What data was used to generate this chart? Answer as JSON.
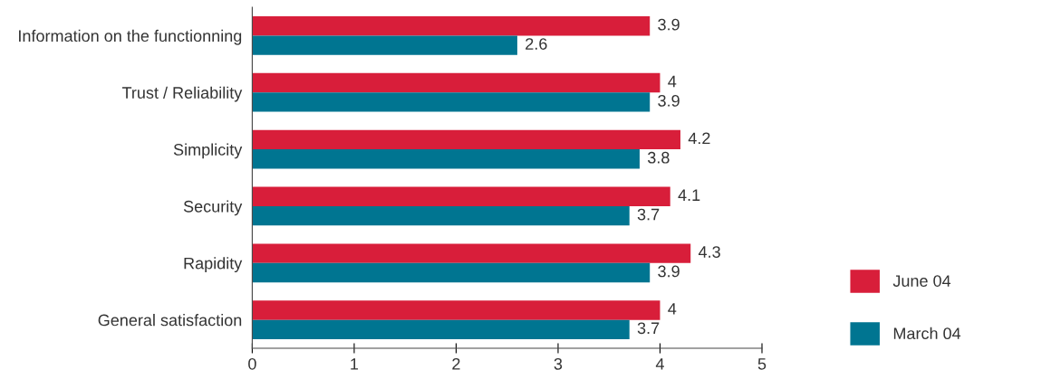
{
  "chart_data": {
    "type": "bar",
    "orientation": "horizontal",
    "categories": [
      "Information on the functionning",
      "Trust / Reliability",
      "Simplicity",
      "Security",
      "Rapidity",
      "General satisfaction"
    ],
    "series": [
      {
        "name": "June 04",
        "color": "#d81e3a",
        "values": [
          3.9,
          4,
          4.2,
          4.1,
          4.3,
          4
        ]
      },
      {
        "name": "March 04",
        "color": "#007591",
        "values": [
          2.6,
          3.9,
          3.8,
          3.7,
          3.9,
          3.7
        ]
      }
    ],
    "data_labels": true,
    "xlim": [
      0,
      5
    ],
    "xticks": [
      0,
      1,
      2,
      3,
      4,
      5
    ],
    "grid": false,
    "legend": "right"
  }
}
